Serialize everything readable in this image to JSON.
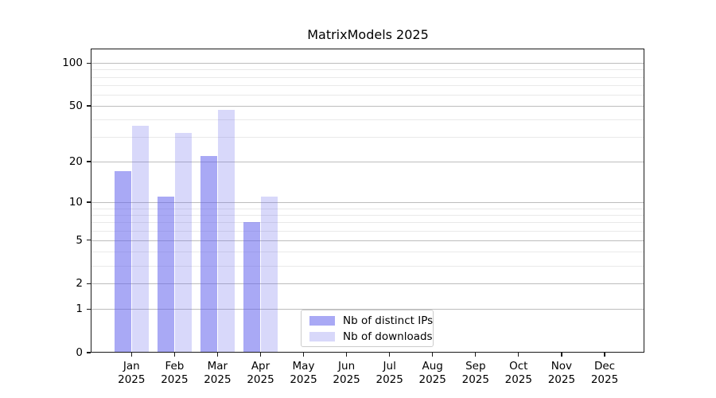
{
  "chart_data": {
    "type": "bar",
    "title": "MatrixModels 2025",
    "x_month_labels": [
      "Jan",
      "Feb",
      "Mar",
      "Apr",
      "May",
      "Jun",
      "Jul",
      "Aug",
      "Sep",
      "Oct",
      "Nov",
      "Dec"
    ],
    "x_year_label": "2025",
    "y_tick_labels": [
      "0",
      "1",
      "2",
      "5",
      "10",
      "20",
      "50",
      "100"
    ],
    "y_tick_values": [
      0,
      1,
      2,
      5,
      10,
      20,
      50,
      100
    ],
    "y_minor_values": [
      3,
      4,
      6,
      7,
      8,
      9,
      30,
      40,
      60,
      70,
      80,
      90
    ],
    "scale": "log10(1+x)",
    "ylim": [
      0,
      126
    ],
    "grid": "horizontal major + minor, no vertical",
    "legend_position": "bottom-center inside plot",
    "series": [
      {
        "name": "Nb of distinct IPs",
        "color": "rgba(99,99,237,0.55)",
        "values": [
          17,
          11,
          22,
          7,
          null,
          null,
          null,
          null,
          null,
          null,
          null,
          null
        ]
      },
      {
        "name": "Nb of downloads",
        "color": "rgba(99,99,237,0.25)",
        "values": [
          36,
          32,
          47,
          11,
          null,
          null,
          null,
          null,
          null,
          null,
          null,
          null
        ]
      }
    ]
  },
  "colors": {
    "bar_base": "#6363ed",
    "major_grid": "#bdbdbd",
    "minor_grid": "#e9e9e9",
    "spine": "#1a1a1a",
    "background": "#ffffff"
  }
}
